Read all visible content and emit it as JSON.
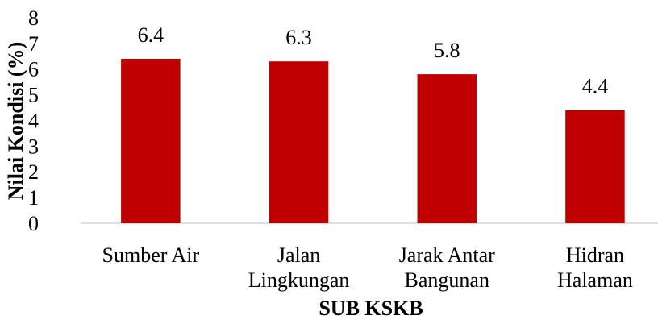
{
  "chart_data": {
    "type": "bar",
    "x_label": "SUB KSKB",
    "y_label": "Nilai Kondisi (%)",
    "categories": [
      "Sumber Air",
      "Jalan\nLingkungan",
      "Jarak Antar\nBangunan",
      "Hidran\nHalaman"
    ],
    "values": [
      6.4,
      6.3,
      5.8,
      4.4
    ],
    "color": "#c00000",
    "ylim": [
      0,
      8
    ],
    "yticks": [
      0,
      1,
      2,
      3,
      4,
      5,
      6,
      7,
      8
    ],
    "grid": false
  }
}
